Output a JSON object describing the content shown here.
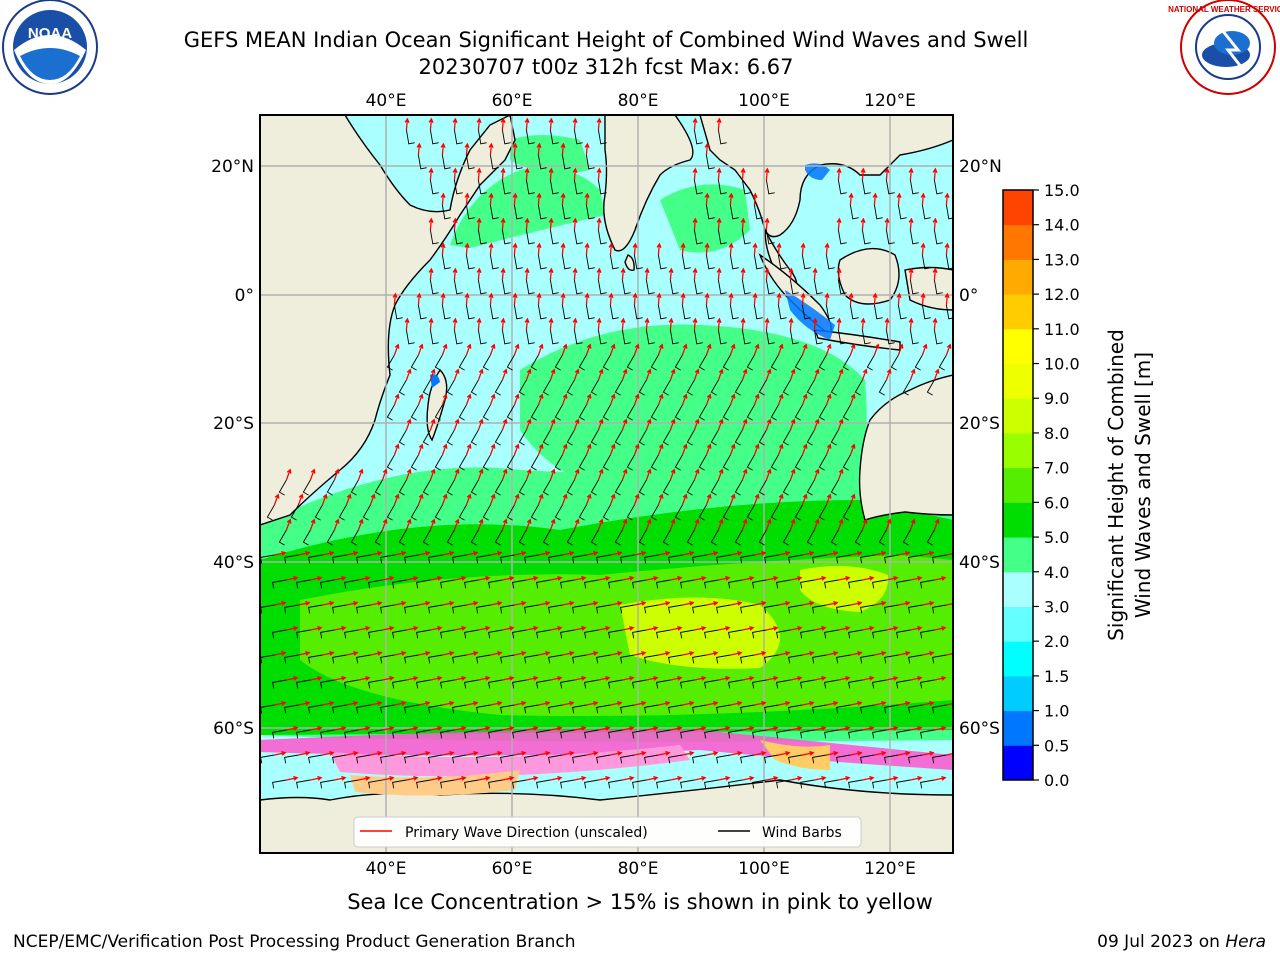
{
  "title": {
    "line1": "GEFS MEAN Indian Ocean Significant Height of Combined Wind Waves and Swell",
    "line2": "20230707 t00z 312h fcst   Max: 6.67"
  },
  "logos": {
    "left": {
      "name": "noaa-logo",
      "text": "NOAA"
    },
    "right": {
      "name": "nws-logo",
      "text": "NATIONAL WEATHER SERVICE"
    }
  },
  "map": {
    "lon_labels_top": [
      "40°E",
      "60°E",
      "80°E",
      "100°E",
      "120°E"
    ],
    "lon_labels_bottom": [
      "40°E",
      "60°E",
      "80°E",
      "100°E",
      "120°E"
    ],
    "lat_labels_left": [
      "20°N",
      "0°",
      "20°S",
      "40°S",
      "60°S"
    ],
    "lat_labels_right": [
      "20°N",
      "0°",
      "20°S",
      "40°S",
      "60°S"
    ],
    "land_color": "#efeedd",
    "legend": {
      "wave_dir": "Primary Wave Direction (unscaled)",
      "wind_barbs": "Wind Barbs"
    }
  },
  "colorbar": {
    "label_line1": "Significant Height of Combined",
    "label_line2": "Wind Waves and Swell [m]",
    "ticks": [
      "0.0",
      "0.5",
      "1.0",
      "1.5",
      "2.0",
      "3.0",
      "4.0",
      "5.0",
      "6.0",
      "7.0",
      "8.0",
      "9.0",
      "10.0",
      "11.0",
      "12.0",
      "13.0",
      "14.0",
      "15.0"
    ],
    "colors": [
      "#0000ff",
      "#0077ff",
      "#00ccff",
      "#00ffff",
      "#66ffff",
      "#aaffff",
      "#44ff88",
      "#00dd00",
      "#55ee00",
      "#99ff00",
      "#ccff00",
      "#eeff00",
      "#ffff00",
      "#ffcc00",
      "#ffaa00",
      "#ff7700",
      "#ff4400",
      "#ff0000"
    ]
  },
  "caption": "Sea Ice Concentration > 15% is shown in pink to yellow",
  "footer": {
    "left": "NCEP/EMC/Verification Post Processing Product Generation Branch",
    "right_date": "09 Jul 2023 on ",
    "right_host": "Hera"
  }
}
